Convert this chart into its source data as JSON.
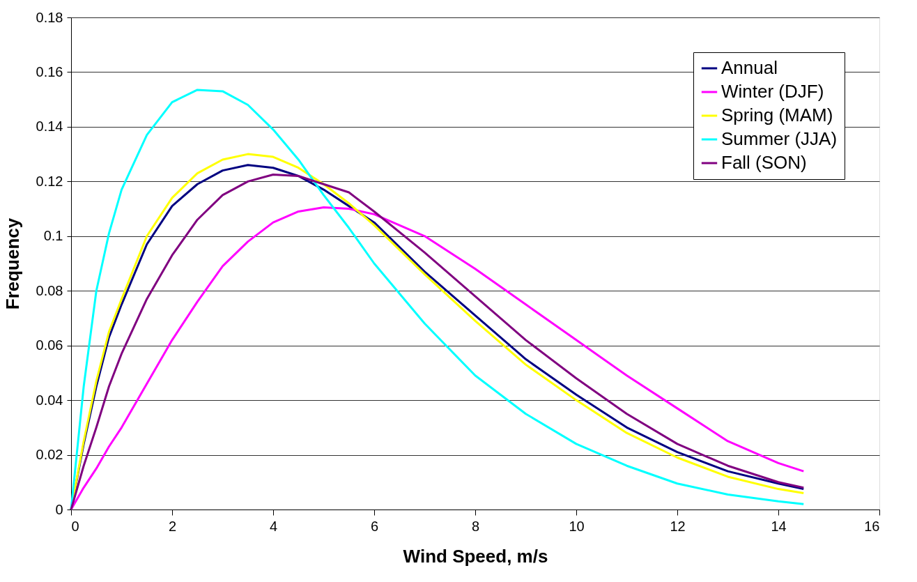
{
  "chart_data": {
    "type": "line",
    "xlabel": "Wind Speed, m/s",
    "ylabel": "Frequency",
    "x": [
      0,
      0.25,
      0.5,
      0.75,
      1,
      1.5,
      2,
      2.5,
      3,
      3.5,
      4,
      4.5,
      5,
      5.5,
      6,
      7,
      8,
      9,
      10,
      11,
      12,
      13,
      14,
      14.5
    ],
    "series": [
      {
        "name": "Annual",
        "color": "#000080",
        "values": [
          0,
          0.024,
          0.045,
          0.063,
          0.075,
          0.097,
          0.111,
          0.119,
          0.124,
          0.126,
          0.125,
          0.122,
          0.117,
          0.111,
          0.105,
          0.087,
          0.071,
          0.055,
          0.042,
          0.03,
          0.021,
          0.014,
          0.0095,
          0.0075
        ]
      },
      {
        "name": "Winter (DJF)",
        "color": "#ff00ff",
        "values": [
          0,
          0.008,
          0.015,
          0.023,
          0.03,
          0.046,
          0.062,
          0.076,
          0.089,
          0.098,
          0.105,
          0.109,
          0.1105,
          0.11,
          0.108,
          0.1,
          0.088,
          0.075,
          0.062,
          0.049,
          0.037,
          0.025,
          0.017,
          0.014
        ]
      },
      {
        "name": "Spring (MAM)",
        "color": "#ffff00",
        "values": [
          0,
          0.025,
          0.047,
          0.065,
          0.077,
          0.1,
          0.114,
          0.123,
          0.128,
          0.13,
          0.129,
          0.125,
          0.119,
          0.112,
          0.104,
          0.086,
          0.069,
          0.053,
          0.04,
          0.028,
          0.019,
          0.012,
          0.0075,
          0.006
        ]
      },
      {
        "name": "Summer (JJA)",
        "color": "#00ffff",
        "values": [
          0,
          0.045,
          0.08,
          0.101,
          0.117,
          0.137,
          0.149,
          0.1535,
          0.153,
          0.148,
          0.139,
          0.128,
          0.115,
          0.103,
          0.09,
          0.068,
          0.049,
          0.035,
          0.024,
          0.016,
          0.0095,
          0.0055,
          0.003,
          0.002
        ]
      },
      {
        "name": "Fall (SON)",
        "color": "#800080",
        "values": [
          0,
          0.016,
          0.03,
          0.045,
          0.057,
          0.077,
          0.093,
          0.106,
          0.115,
          0.12,
          0.1225,
          0.122,
          0.119,
          0.116,
          0.109,
          0.094,
          0.078,
          0.062,
          0.048,
          0.035,
          0.024,
          0.016,
          0.01,
          0.008
        ]
      }
    ],
    "xlim": [
      0,
      16
    ],
    "xticks": [
      0,
      2,
      4,
      6,
      8,
      10,
      12,
      14,
      16
    ],
    "ylim": [
      0,
      0.18
    ],
    "yticks": [
      0,
      0.02,
      0.04,
      0.06,
      0.08,
      0.1,
      0.12,
      0.14,
      0.16,
      0.18
    ],
    "grid": "y",
    "legend": "top right",
    "marker": "none",
    "line_style": "solid"
  }
}
